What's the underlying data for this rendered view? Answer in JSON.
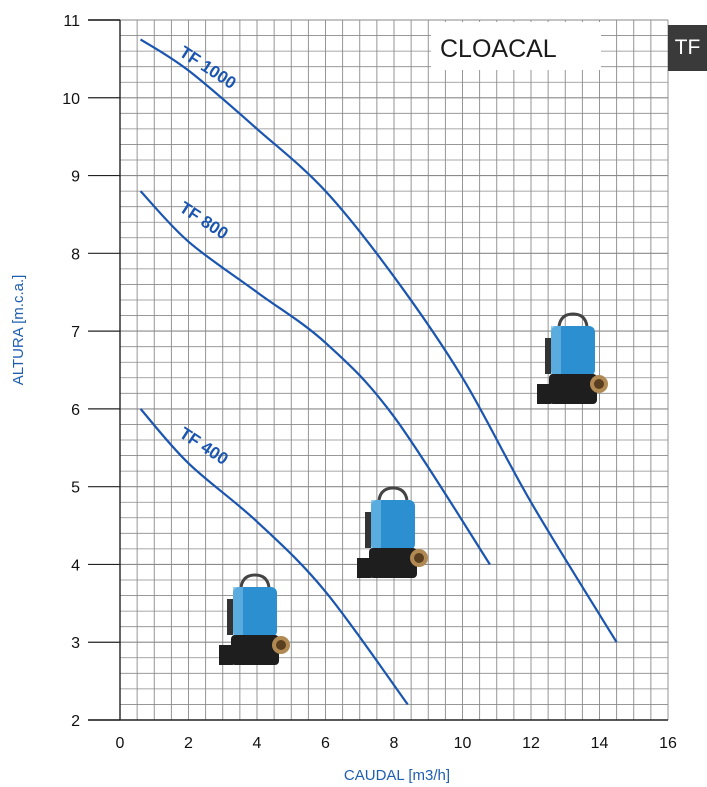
{
  "section_tag": "TF",
  "colors": {
    "curve": "#1a55b0",
    "axis_label": "#1f5fb0",
    "grid": "#8a8a8a",
    "pump_body": "#2b8fd0",
    "pump_base": "#1e1e1e"
  },
  "pump_image_icon": "submersible-pump-icon",
  "chart_data": {
    "type": "line",
    "title": "CLOACAL",
    "xlabel": "CAUDAL [m3/h]",
    "ylabel": "ALTURA [m.c.a.]",
    "xlim": [
      0,
      16
    ],
    "ylim": [
      2,
      11
    ],
    "x_ticks": [
      "0",
      "2",
      "4",
      "6",
      "8",
      "10",
      "12",
      "14",
      "16"
    ],
    "y_ticks": [
      "2",
      "3",
      "4",
      "5",
      "6",
      "7",
      "8",
      "9",
      "10",
      "11"
    ],
    "grid": true,
    "series": [
      {
        "name": "TF 1000",
        "x": [
          0.6,
          2,
          4,
          6,
          8,
          10,
          12,
          14.5
        ],
        "y": [
          10.75,
          10.35,
          9.6,
          8.8,
          7.7,
          6.4,
          4.8,
          3.0
        ]
      },
      {
        "name": "TF 800",
        "x": [
          0.6,
          2,
          4,
          6,
          8,
          10.8
        ],
        "y": [
          8.8,
          8.15,
          7.5,
          6.85,
          5.9,
          4.0
        ]
      },
      {
        "name": "TF 400",
        "x": [
          0.6,
          2,
          4,
          6,
          8.4
        ],
        "y": [
          6.0,
          5.3,
          4.55,
          3.65,
          2.2
        ]
      }
    ]
  }
}
